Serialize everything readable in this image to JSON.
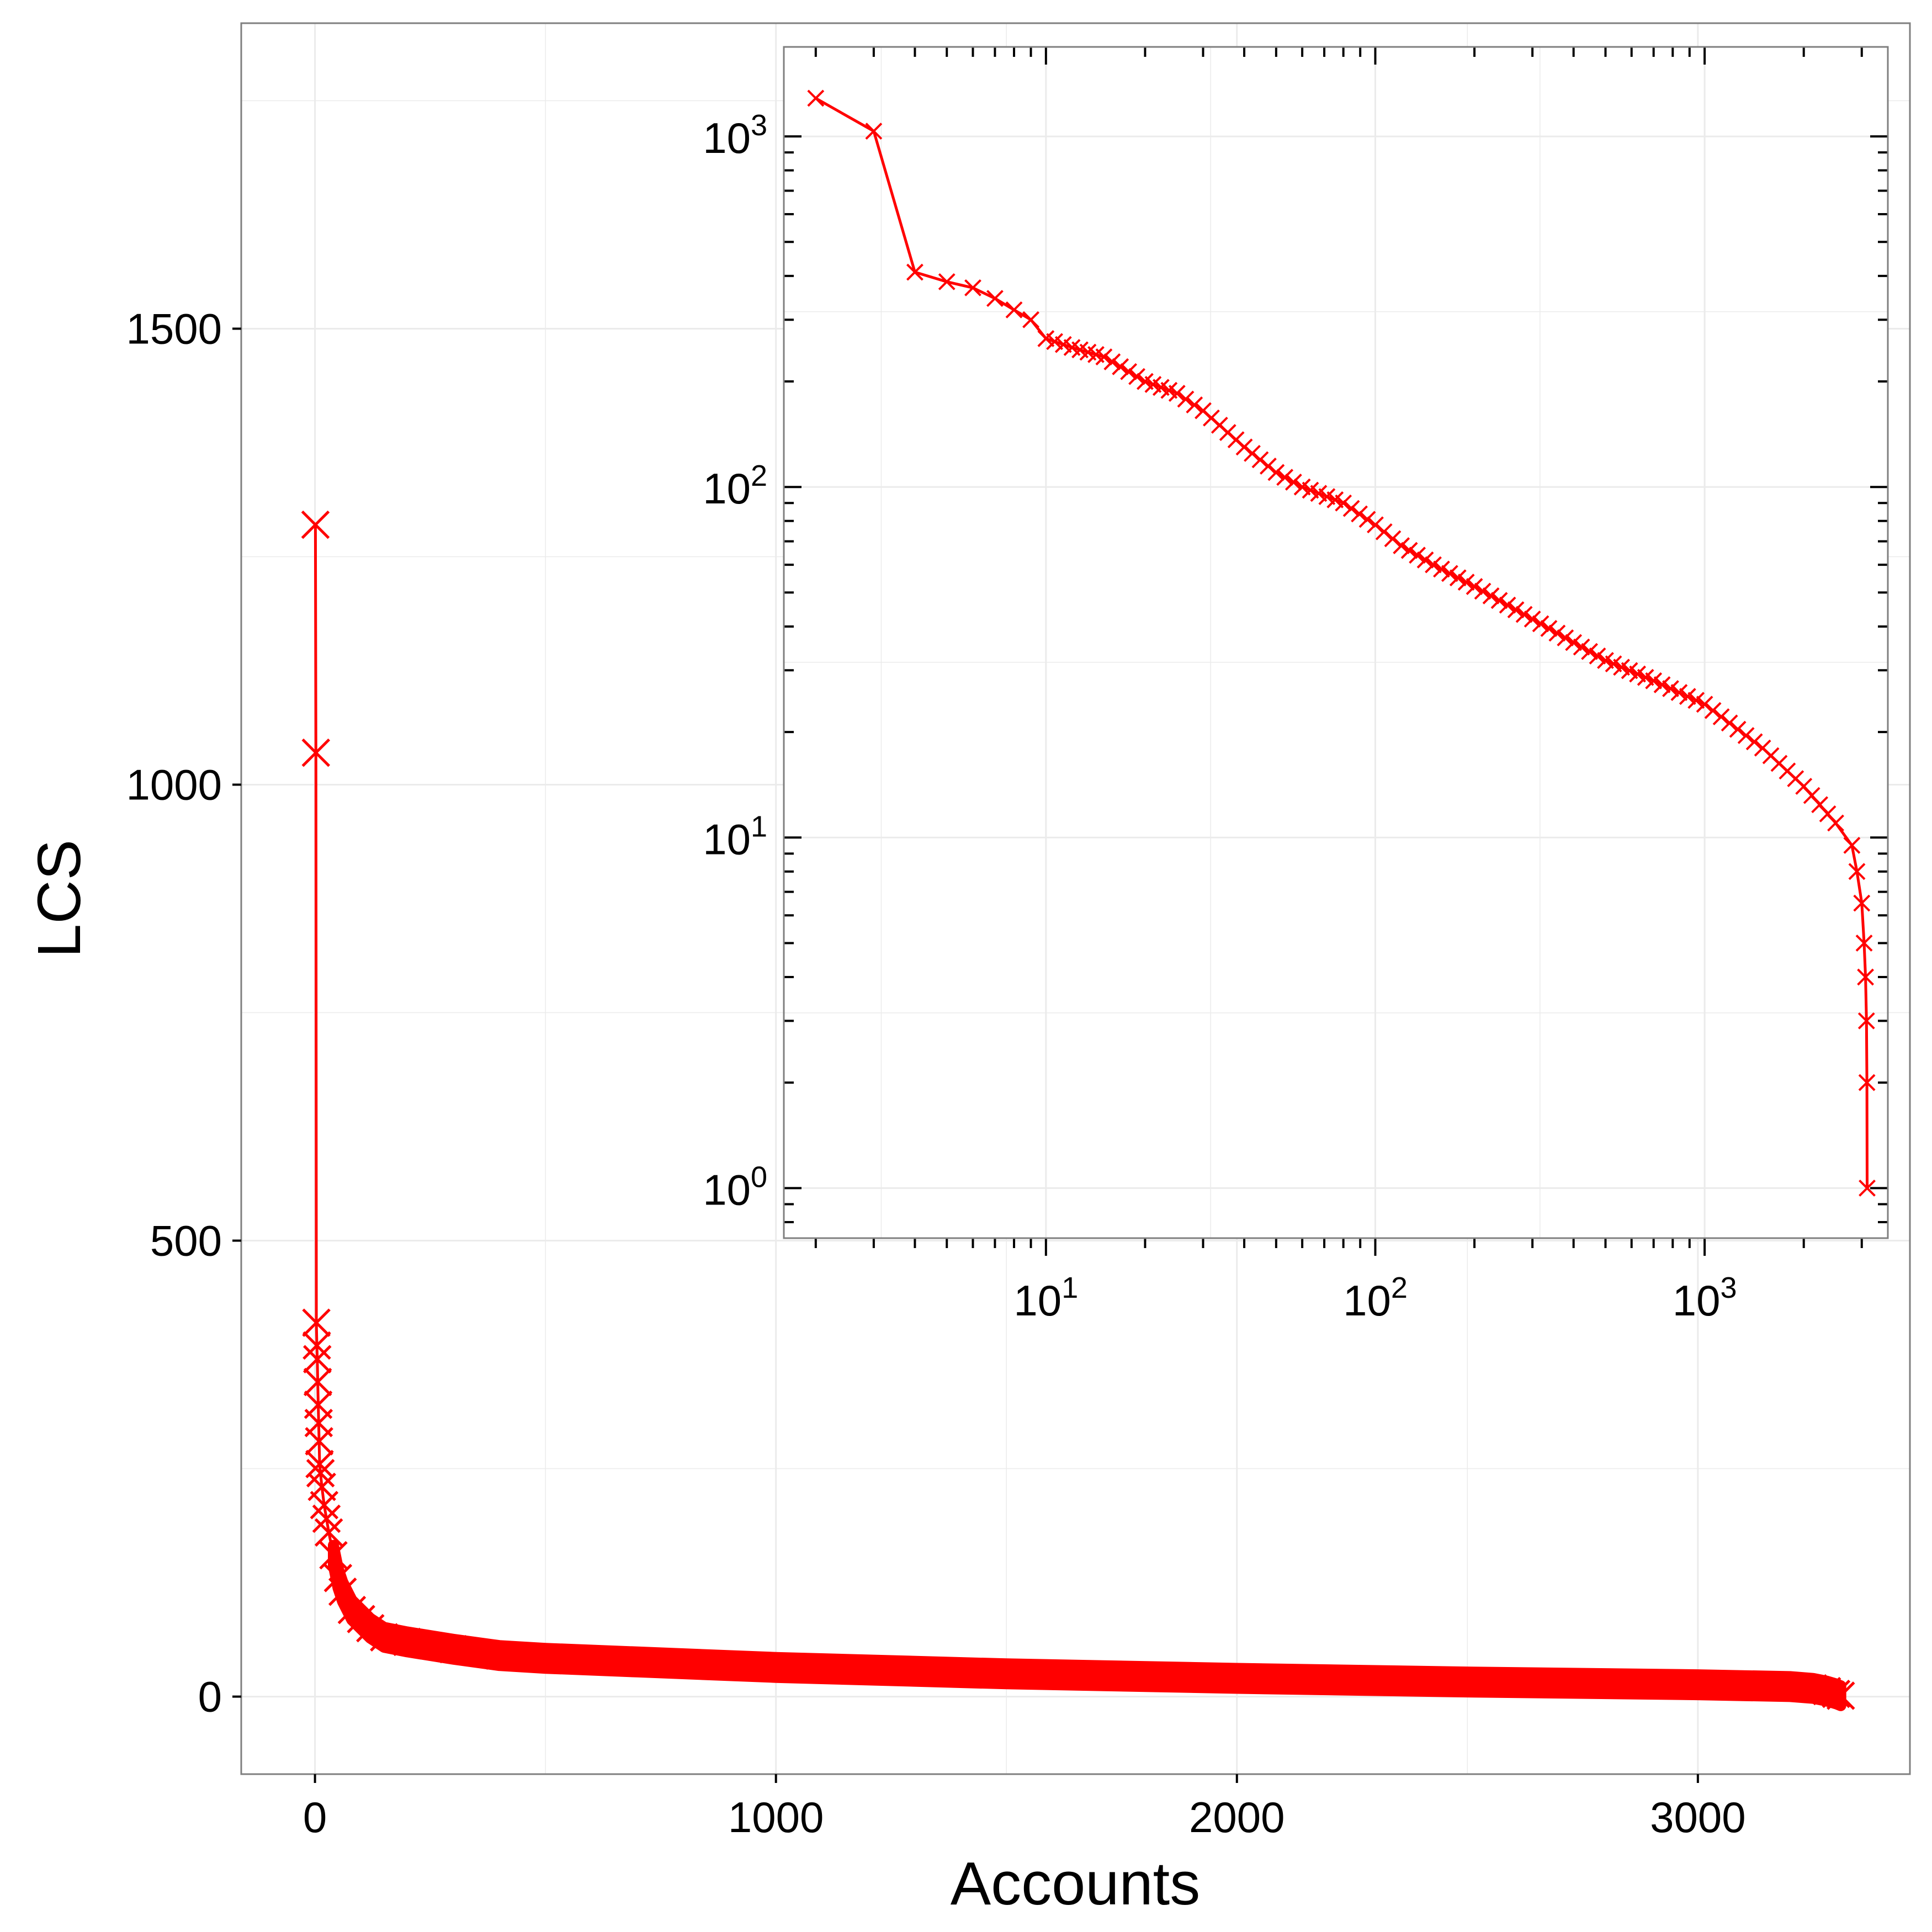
{
  "colors": {
    "series": "#ff0000",
    "grid": "#ebebeb",
    "frame": "#7f7f7f",
    "tick": "#000000"
  },
  "chart_data": [
    {
      "type": "scatter",
      "id": "main",
      "xlabel": "Accounts",
      "ylabel": "LCS",
      "xlim": [
        -160,
        3460
      ],
      "ylim": [
        -85,
        1835
      ],
      "xticks": [
        0,
        1000,
        2000,
        3000
      ],
      "xtick_labels": [
        "0",
        "1000",
        "2000",
        "3000"
      ],
      "yticks": [
        0,
        500,
        1000,
        1500
      ],
      "ytick_labels": [
        "0",
        "500",
        "1000",
        "1500"
      ],
      "grid": true,
      "marker": "x",
      "series": [
        {
          "x": [
            1,
            2,
            3,
            4,
            5,
            6,
            7,
            8,
            9,
            10,
            12,
            15,
            20,
            25,
            30,
            40,
            50,
            60,
            80,
            100,
            120,
            150,
            200,
            300,
            400,
            500,
            700,
            1000,
            1500,
            2000,
            2500,
            3000,
            3200,
            3250,
            3280,
            3300,
            3310
          ],
          "y": [
            1285,
            1035,
            410,
            385,
            370,
            345,
            320,
            300,
            280,
            255,
            245,
            230,
            210,
            195,
            180,
            155,
            130,
            115,
            95,
            85,
            75,
            65,
            60,
            52,
            45,
            42,
            38,
            32,
            25,
            20,
            16,
            13,
            11,
            9,
            6,
            3,
            1
          ]
        }
      ]
    },
    {
      "type": "line",
      "id": "inset",
      "xscale": "log",
      "yscale": "log",
      "xlim": [
        1.6,
        3600
      ],
      "ylim": [
        0.72,
        1800
      ],
      "xticks": [
        10,
        100,
        1000
      ],
      "xtick_labels": [
        {
          "base": "10",
          "exp": "1"
        },
        {
          "base": "10",
          "exp": "2"
        },
        {
          "base": "10",
          "exp": "3"
        }
      ],
      "yticks": [
        1,
        10,
        100,
        1000
      ],
      "ytick_labels": [
        {
          "base": "10",
          "exp": "0"
        },
        {
          "base": "10",
          "exp": "1"
        },
        {
          "base": "10",
          "exp": "2"
        },
        {
          "base": "10",
          "exp": "3"
        }
      ],
      "grid": true,
      "marker": "x",
      "series": [
        {
          "x": [
            2,
            3,
            4,
            5,
            6,
            7,
            8,
            9,
            10,
            12,
            15,
            20,
            25,
            30,
            40,
            50,
            60,
            80,
            100,
            120,
            150,
            200,
            300,
            400,
            500,
            700,
            1000,
            1500,
            2000,
            2500,
            2800,
            2900,
            3000,
            3050,
            3080,
            3100,
            3110,
            3115
          ],
          "y": [
            1285,
            1035,
            410,
            385,
            370,
            345,
            320,
            300,
            265,
            250,
            235,
            200,
            185,
            165,
            130,
            110,
            100,
            90,
            78,
            68,
            60,
            52,
            42,
            36,
            32,
            28,
            24,
            18,
            14,
            11,
            9.5,
            8,
            6.5,
            5,
            4,
            3,
            2,
            1
          ]
        }
      ]
    }
  ]
}
